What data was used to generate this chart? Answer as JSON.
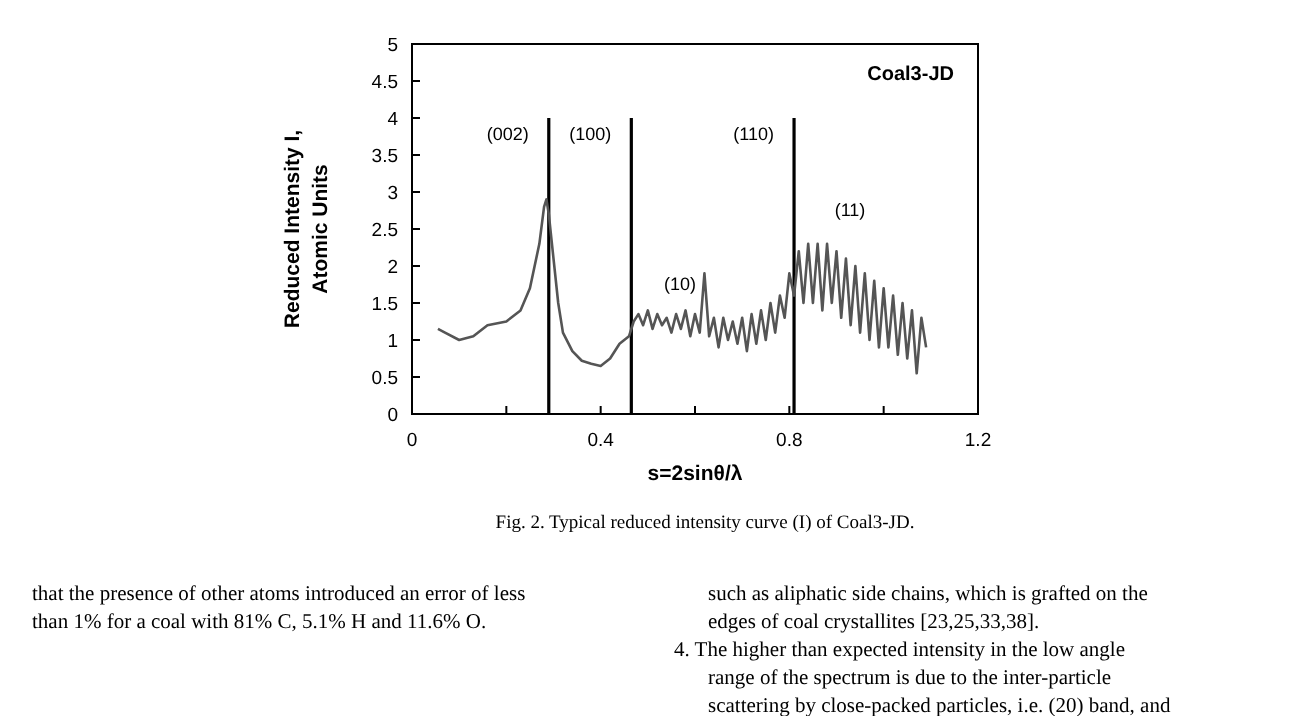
{
  "chart_data": {
    "type": "line",
    "title": "Coal3-JD",
    "xlabel": "s=2sinθ/λ",
    "ylabel": "Reduced Intensity I,\nAtomic Units",
    "xlim": [
      0,
      1.2
    ],
    "ylim": [
      0,
      5
    ],
    "xticks": [
      0,
      {
        "value": 0.2,
        "label": null
      },
      0.4,
      {
        "value": 0.6,
        "label": null
      },
      0.8,
      {
        "value": 1.0,
        "label": null
      },
      1.2
    ],
    "yticks": [
      0,
      0.5,
      1,
      1.5,
      2,
      2.5,
      3,
      3.5,
      4,
      4.5,
      5
    ],
    "grid": false,
    "marker": "none",
    "line_style": "solid",
    "series": [
      {
        "color": "#555555",
        "x": [
          0.055,
          0.07,
          0.1,
          0.13,
          0.16,
          0.2,
          0.23,
          0.25,
          0.27,
          0.28,
          0.285,
          0.29,
          0.3,
          0.31,
          0.32,
          0.34,
          0.36,
          0.38,
          0.4,
          0.42,
          0.44,
          0.46,
          0.47,
          0.48,
          0.49,
          0.5,
          0.51,
          0.52,
          0.53,
          0.54,
          0.55,
          0.56,
          0.57,
          0.58,
          0.59,
          0.6,
          0.61,
          0.62,
          0.63,
          0.64,
          0.65,
          0.66,
          0.67,
          0.68,
          0.69,
          0.7,
          0.71,
          0.72,
          0.73,
          0.74,
          0.75,
          0.76,
          0.77,
          0.78,
          0.79,
          0.8,
          0.81,
          0.82,
          0.83,
          0.84,
          0.85,
          0.86,
          0.87,
          0.88,
          0.89,
          0.9,
          0.91,
          0.92,
          0.93,
          0.94,
          0.95,
          0.96,
          0.97,
          0.98,
          0.99,
          1.0,
          1.01,
          1.02,
          1.03,
          1.04,
          1.05,
          1.06,
          1.07,
          1.08,
          1.09
        ],
        "values": [
          1.15,
          1.1,
          1.0,
          1.05,
          1.2,
          1.25,
          1.4,
          1.7,
          2.3,
          2.8,
          2.9,
          2.7,
          2.1,
          1.5,
          1.1,
          0.85,
          0.72,
          0.68,
          0.65,
          0.75,
          0.95,
          1.05,
          1.25,
          1.35,
          1.2,
          1.4,
          1.15,
          1.35,
          1.2,
          1.3,
          1.1,
          1.35,
          1.15,
          1.4,
          1.05,
          1.35,
          1.1,
          1.9,
          1.05,
          1.3,
          0.9,
          1.3,
          1.0,
          1.25,
          0.95,
          1.3,
          0.85,
          1.35,
          0.95,
          1.4,
          1.0,
          1.5,
          1.1,
          1.6,
          1.3,
          1.9,
          1.6,
          2.2,
          1.5,
          2.3,
          1.5,
          2.3,
          1.4,
          2.3,
          1.5,
          2.2,
          1.3,
          2.1,
          1.2,
          2.0,
          1.1,
          1.9,
          1.0,
          1.8,
          0.9,
          1.7,
          0.9,
          1.6,
          0.8,
          1.5,
          0.75,
          1.4,
          0.55,
          1.3,
          0.9
        ]
      }
    ],
    "ref_lines": [
      {
        "axis": "x",
        "value": 0.29,
        "color": "#000000"
      },
      {
        "axis": "x",
        "value": 0.465,
        "color": "#000000"
      },
      {
        "axis": "x",
        "value": 0.81,
        "color": "#000000"
      }
    ],
    "annotations": [
      "(002)",
      "(100)",
      "(110)",
      "(10)",
      "(11)",
      "Fig. 2. Typical reduced intensity curve (I) of Coal3-JD.",
      "that the presence of other atoms introduced an error of less",
      "than 1% for a coal with 81% C, 5.1% H and 11.6% O.",
      "such as aliphatic side chains, which is grafted on the",
      "edges of coal crystallites [23,25,33,38].",
      "4. The higher than expected intensity in the low angle",
      "range of the spectrum is due to the inter-particle",
      "scattering by close-packed particles, i.e. (20) band, and"
    ]
  }
}
